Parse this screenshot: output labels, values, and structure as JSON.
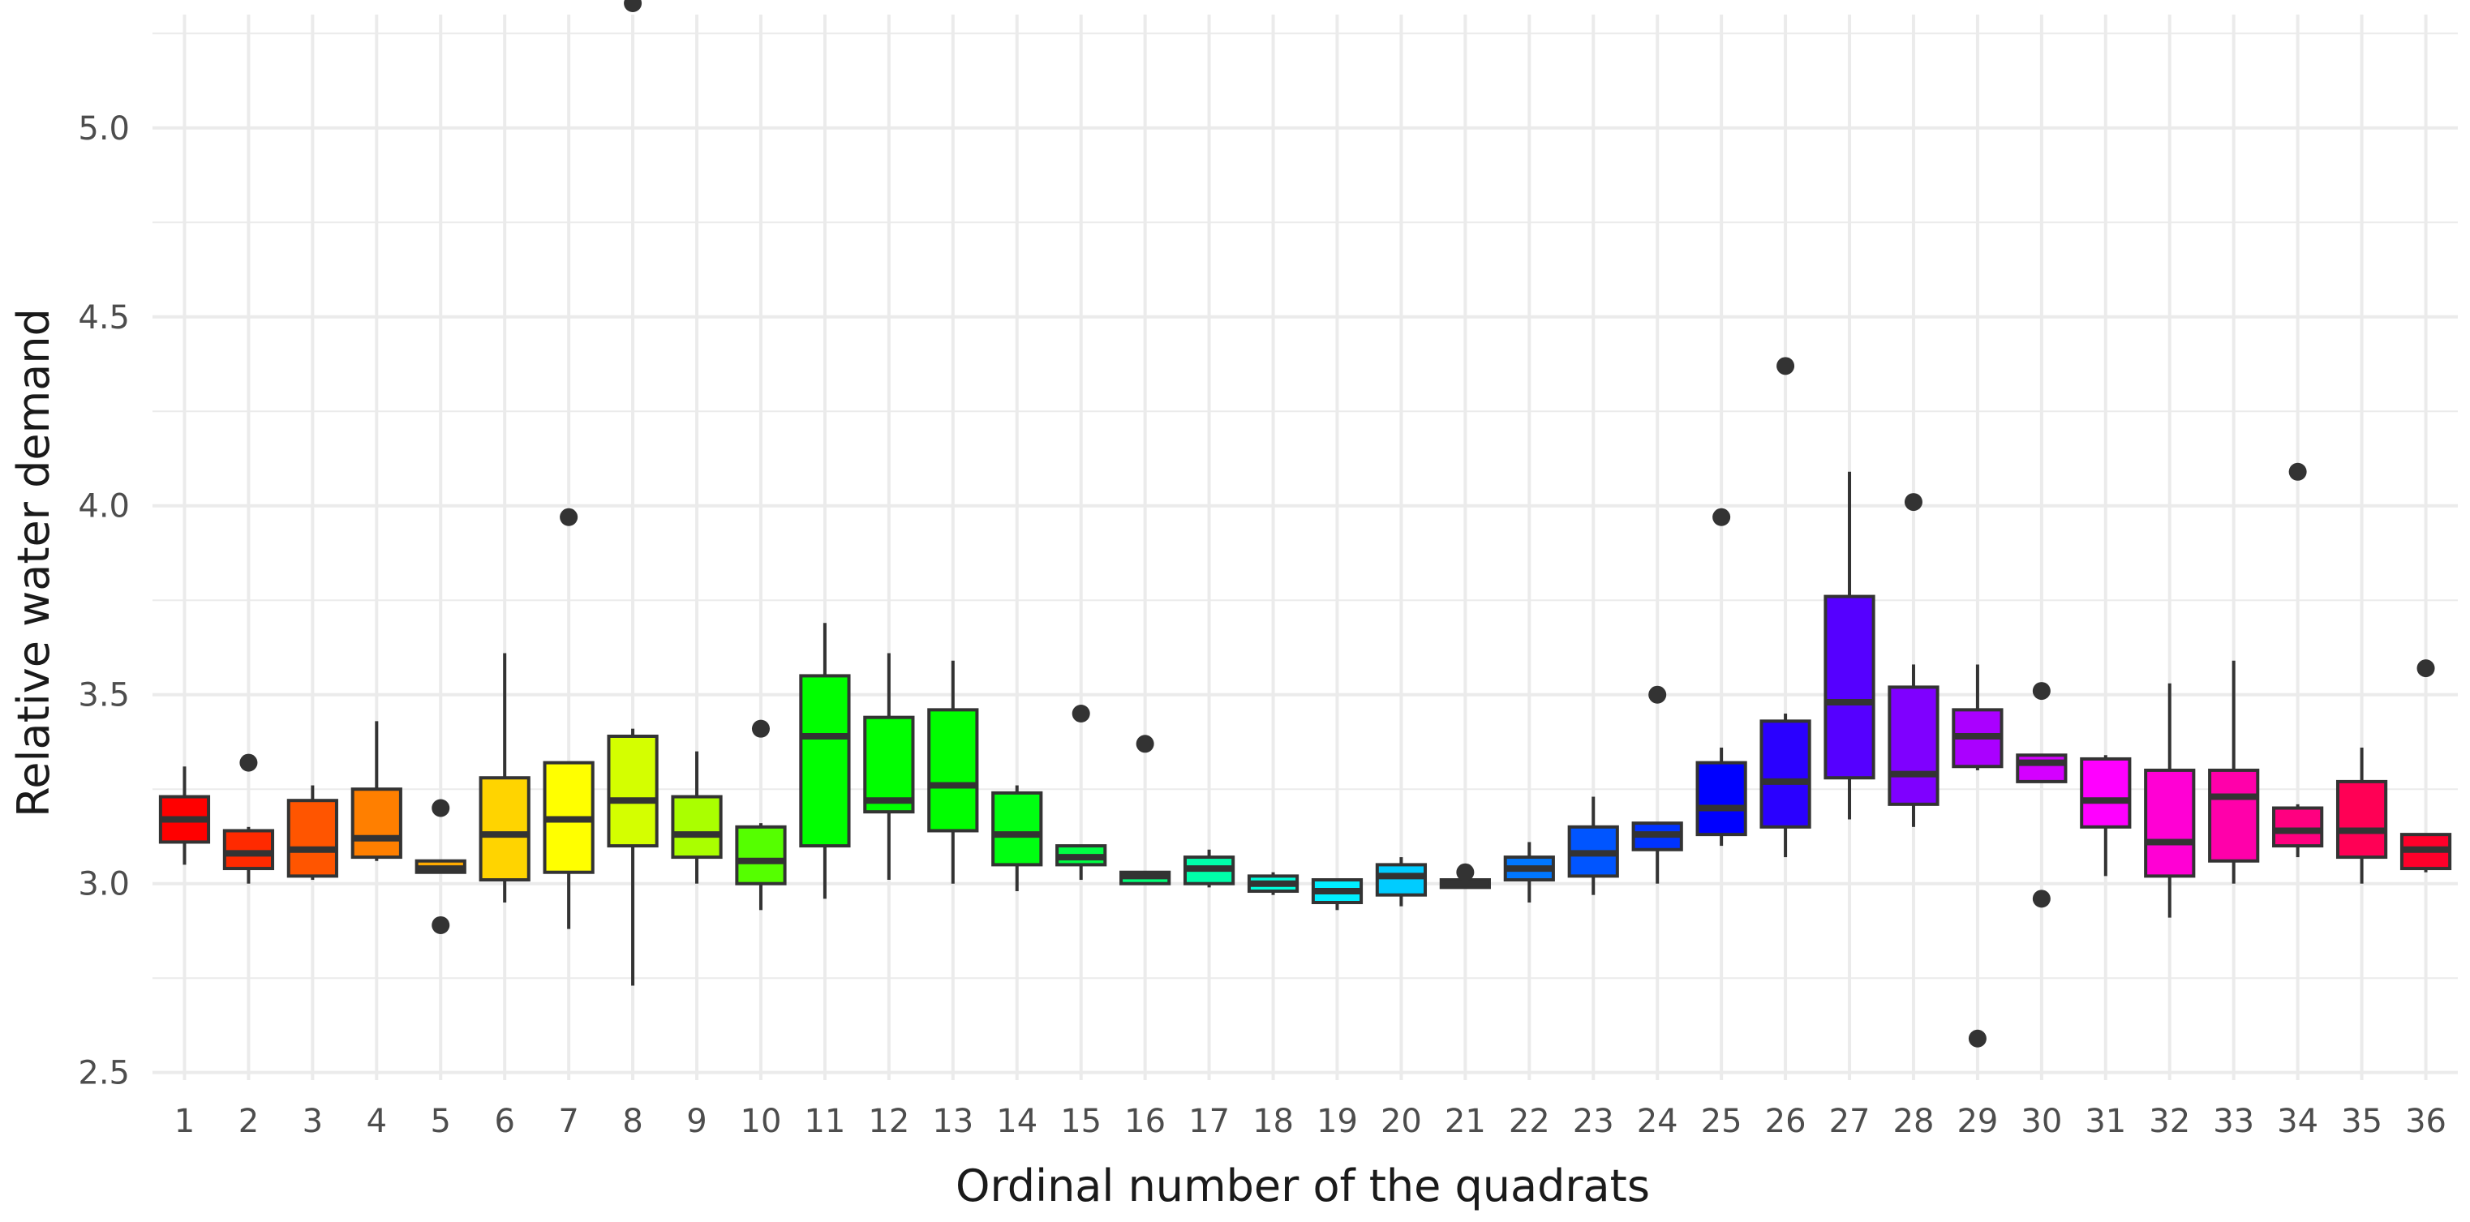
{
  "chart_data": {
    "type": "box",
    "xlabel": "Ordinal number of the quadrats",
    "ylabel": "Relative water demand",
    "ylim": [
      2.48,
      5.3
    ],
    "yticks": [
      2.5,
      3.0,
      3.5,
      4.0,
      4.5,
      5.0
    ],
    "ytick_labels": [
      "2.5",
      "3.0",
      "3.5",
      "4.0",
      "4.5",
      "5.0"
    ],
    "grid": true,
    "legend": "none",
    "categories": [
      "1",
      "2",
      "3",
      "4",
      "5",
      "6",
      "7",
      "8",
      "9",
      "10",
      "11",
      "12",
      "13",
      "14",
      "15",
      "16",
      "17",
      "18",
      "19",
      "20",
      "21",
      "22",
      "23",
      "24",
      "25",
      "26",
      "27",
      "28",
      "29",
      "30",
      "31",
      "32",
      "33",
      "34",
      "35",
      "36"
    ],
    "boxes": [
      {
        "category": "1",
        "color": "#ff0000",
        "whisker_low": 3.05,
        "q1": 3.11,
        "median": 3.17,
        "q3": 3.23,
        "whisker_high": 3.31,
        "outliers": []
      },
      {
        "category": "2",
        "color": "#ff2a00",
        "whisker_low": 3.0,
        "q1": 3.04,
        "median": 3.08,
        "q3": 3.14,
        "whisker_high": 3.15,
        "outliers": [
          3.32
        ]
      },
      {
        "category": "3",
        "color": "#ff5500",
        "whisker_low": 3.01,
        "q1": 3.02,
        "median": 3.09,
        "q3": 3.22,
        "whisker_high": 3.26,
        "outliers": []
      },
      {
        "category": "4",
        "color": "#ff7f00",
        "whisker_low": 3.06,
        "q1": 3.07,
        "median": 3.12,
        "q3": 3.25,
        "whisker_high": 3.43,
        "outliers": []
      },
      {
        "category": "5",
        "color": "#ffaa00",
        "whisker_low": 3.03,
        "q1": 3.03,
        "median": 3.04,
        "q3": 3.06,
        "whisker_high": 3.06,
        "outliers": [
          3.2,
          2.89
        ]
      },
      {
        "category": "6",
        "color": "#ffd400",
        "whisker_low": 2.95,
        "q1": 3.01,
        "median": 3.13,
        "q3": 3.28,
        "whisker_high": 3.61,
        "outliers": []
      },
      {
        "category": "7",
        "color": "#ffff00",
        "whisker_low": 2.88,
        "q1": 3.03,
        "median": 3.17,
        "q3": 3.32,
        "whisker_high": 3.32,
        "outliers": [
          3.97
        ]
      },
      {
        "category": "8",
        "color": "#d4ff00",
        "whisker_low": 2.73,
        "q1": 3.1,
        "median": 3.22,
        "q3": 3.39,
        "whisker_high": 3.41,
        "outliers": [
          5.33
        ]
      },
      {
        "category": "9",
        "color": "#aaff00",
        "whisker_low": 3.0,
        "q1": 3.07,
        "median": 3.13,
        "q3": 3.23,
        "whisker_high": 3.35,
        "outliers": []
      },
      {
        "category": "10",
        "color": "#55ff00",
        "whisker_low": 2.93,
        "q1": 3.0,
        "median": 3.06,
        "q3": 3.15,
        "whisker_high": 3.16,
        "outliers": [
          3.41
        ]
      },
      {
        "category": "11",
        "color": "#00ff00",
        "whisker_low": 2.96,
        "q1": 3.1,
        "median": 3.39,
        "q3": 3.55,
        "whisker_high": 3.69,
        "outliers": []
      },
      {
        "category": "12",
        "color": "#00ff00",
        "whisker_low": 3.01,
        "q1": 3.19,
        "median": 3.22,
        "q3": 3.44,
        "whisker_high": 3.61,
        "outliers": []
      },
      {
        "category": "13",
        "color": "#00ff00",
        "whisker_low": 3.0,
        "q1": 3.14,
        "median": 3.26,
        "q3": 3.46,
        "whisker_high": 3.59,
        "outliers": []
      },
      {
        "category": "14",
        "color": "#00ff11",
        "whisker_low": 2.98,
        "q1": 3.05,
        "median": 3.13,
        "q3": 3.24,
        "whisker_high": 3.26,
        "outliers": []
      },
      {
        "category": "15",
        "color": "#00ff44",
        "whisker_low": 3.01,
        "q1": 3.05,
        "median": 3.07,
        "q3": 3.1,
        "whisker_high": 3.1,
        "outliers": [
          3.45
        ]
      },
      {
        "category": "16",
        "color": "#00ff77",
        "whisker_low": 3.0,
        "q1": 3.0,
        "median": 3.02,
        "q3": 3.03,
        "whisker_high": 3.03,
        "outliers": [
          3.37
        ]
      },
      {
        "category": "17",
        "color": "#00ffaa",
        "whisker_low": 2.99,
        "q1": 3.0,
        "median": 3.04,
        "q3": 3.07,
        "whisker_high": 3.09,
        "outliers": []
      },
      {
        "category": "18",
        "color": "#00ffdd",
        "whisker_low": 2.97,
        "q1": 2.98,
        "median": 3.0,
        "q3": 3.02,
        "whisker_high": 3.03,
        "outliers": []
      },
      {
        "category": "19",
        "color": "#00eeff",
        "whisker_low": 2.93,
        "q1": 2.95,
        "median": 2.98,
        "q3": 3.01,
        "whisker_high": 3.01,
        "outliers": []
      },
      {
        "category": "20",
        "color": "#00ccff",
        "whisker_low": 2.94,
        "q1": 2.97,
        "median": 3.02,
        "q3": 3.05,
        "whisker_high": 3.07,
        "outliers": []
      },
      {
        "category": "21",
        "color": "#0099ff",
        "whisker_low": 2.99,
        "q1": 2.99,
        "median": 3.0,
        "q3": 3.01,
        "whisker_high": 3.01,
        "outliers": [
          3.03
        ]
      },
      {
        "category": "22",
        "color": "#0077ff",
        "whisker_low": 2.95,
        "q1": 3.01,
        "median": 3.04,
        "q3": 3.07,
        "whisker_high": 3.11,
        "outliers": []
      },
      {
        "category": "23",
        "color": "#0055ff",
        "whisker_low": 2.97,
        "q1": 3.02,
        "median": 3.08,
        "q3": 3.15,
        "whisker_high": 3.23,
        "outliers": []
      },
      {
        "category": "24",
        "color": "#0033ff",
        "whisker_low": 3.0,
        "q1": 3.09,
        "median": 3.13,
        "q3": 3.16,
        "whisker_high": 3.16,
        "outliers": [
          3.5
        ]
      },
      {
        "category": "25",
        "color": "#0000ff",
        "whisker_low": 3.1,
        "q1": 3.13,
        "median": 3.2,
        "q3": 3.32,
        "whisker_high": 3.36,
        "outliers": [
          3.97
        ]
      },
      {
        "category": "26",
        "color": "#2a00ff",
        "whisker_low": 3.07,
        "q1": 3.15,
        "median": 3.27,
        "q3": 3.43,
        "whisker_high": 3.45,
        "outliers": [
          4.37
        ]
      },
      {
        "category": "27",
        "color": "#5500ff",
        "whisker_low": 3.17,
        "q1": 3.28,
        "median": 3.48,
        "q3": 3.76,
        "whisker_high": 4.09,
        "outliers": []
      },
      {
        "category": "28",
        "color": "#7f00ff",
        "whisker_low": 3.15,
        "q1": 3.21,
        "median": 3.29,
        "q3": 3.52,
        "whisker_high": 3.58,
        "outliers": [
          4.01
        ]
      },
      {
        "category": "29",
        "color": "#aa00ff",
        "whisker_low": 3.3,
        "q1": 3.31,
        "median": 3.39,
        "q3": 3.46,
        "whisker_high": 3.58,
        "outliers": [
          2.59
        ]
      },
      {
        "category": "30",
        "color": "#d400ff",
        "whisker_low": 3.27,
        "q1": 3.27,
        "median": 3.32,
        "q3": 3.34,
        "whisker_high": 3.34,
        "outliers": [
          3.51,
          2.96
        ]
      },
      {
        "category": "31",
        "color": "#ff00ff",
        "whisker_low": 3.02,
        "q1": 3.15,
        "median": 3.22,
        "q3": 3.33,
        "whisker_high": 3.34,
        "outliers": []
      },
      {
        "category": "32",
        "color": "#ff00d4",
        "whisker_low": 2.91,
        "q1": 3.02,
        "median": 3.11,
        "q3": 3.3,
        "whisker_high": 3.53,
        "outliers": []
      },
      {
        "category": "33",
        "color": "#ff00aa",
        "whisker_low": 3.0,
        "q1": 3.06,
        "median": 3.23,
        "q3": 3.3,
        "whisker_high": 3.59,
        "outliers": []
      },
      {
        "category": "34",
        "color": "#ff0080",
        "whisker_low": 3.07,
        "q1": 3.1,
        "median": 3.14,
        "q3": 3.2,
        "whisker_high": 3.21,
        "outliers": [
          4.09
        ]
      },
      {
        "category": "35",
        "color": "#ff0055",
        "whisker_low": 3.0,
        "q1": 3.07,
        "median": 3.14,
        "q3": 3.27,
        "whisker_high": 3.36,
        "outliers": []
      },
      {
        "category": "36",
        "color": "#ff002a",
        "whisker_low": 3.03,
        "q1": 3.04,
        "median": 3.09,
        "q3": 3.13,
        "whisker_high": 3.13,
        "outliers": [
          3.57
        ]
      }
    ]
  },
  "colors": {
    "grid": "#ebebeb",
    "box_outline": "#333333",
    "outlier": "#333333"
  }
}
